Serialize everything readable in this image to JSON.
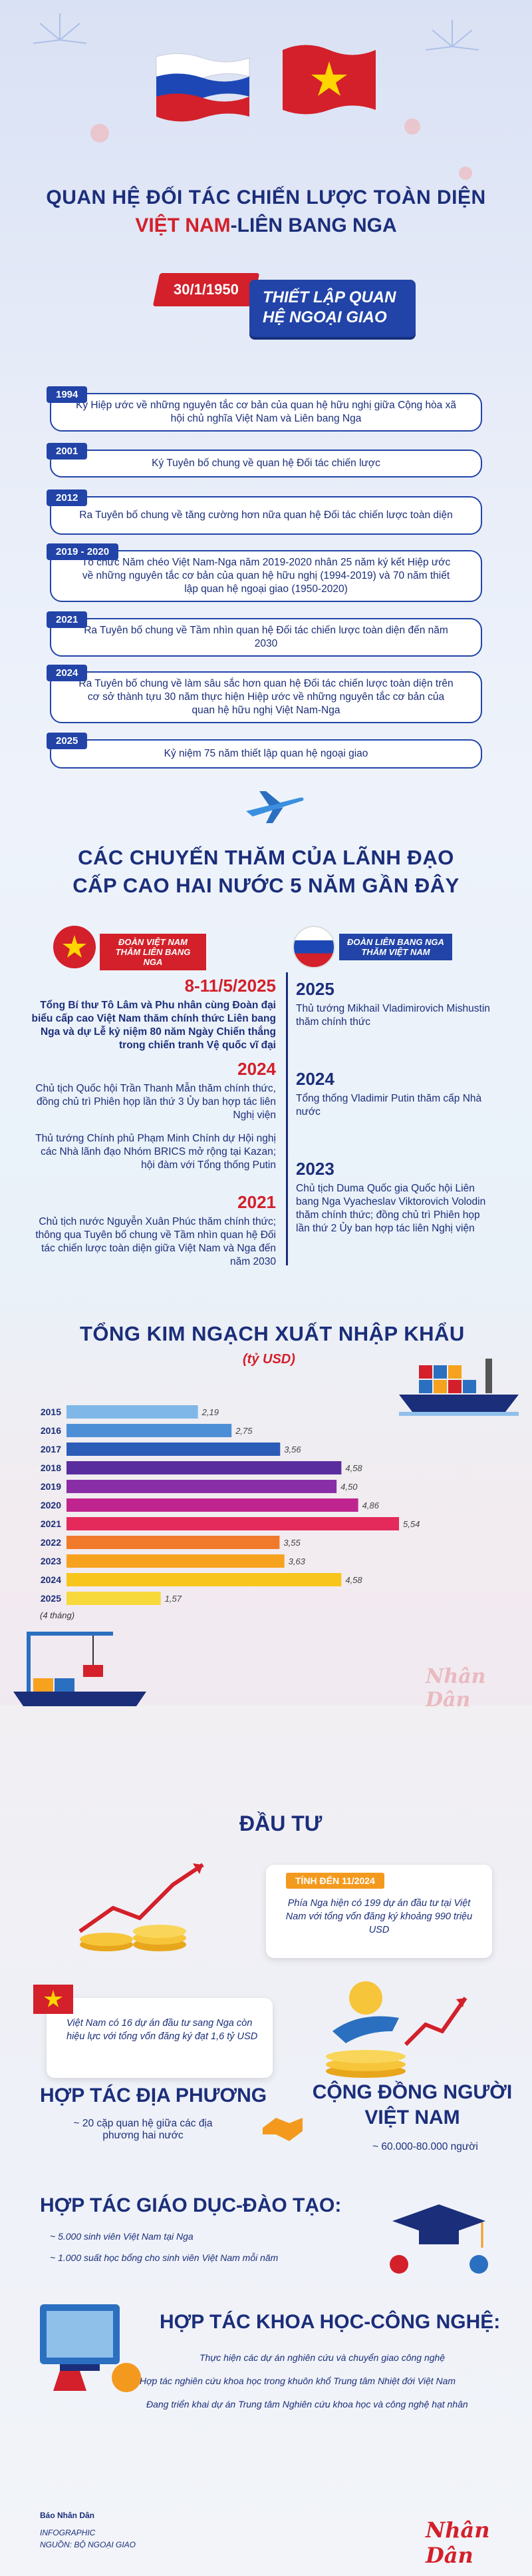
{
  "header": {
    "title_line1": "QUAN HỆ ĐỐI TÁC CHIẾN LƯỢC TOÀN DIỆN",
    "title_line2_red": "VIỆT NAM",
    "title_line2_blue": "-LIÊN BANG NGA",
    "date": "30/1/1950",
    "established": "THIẾT LẬP QUAN HỆ NGOẠI GIAO"
  },
  "timeline": [
    {
      "year": "1994",
      "text": "Ký Hiệp ước về những nguyên tắc cơ bản của quan hệ hữu nghị giữa Cộng hòa xã hội chủ nghĩa Việt Nam và Liên bang Nga"
    },
    {
      "year": "2001",
      "text": "Ký Tuyên bố chung về quan hệ Đối tác chiến lược"
    },
    {
      "year": "2012",
      "text": "Ra Tuyên bố chung về tăng cường hơn nữa quan hệ Đối tác chiến lược toàn diện"
    },
    {
      "year": "2019 - 2020",
      "text": "Tổ chức Năm chéo Việt Nam-Nga năm 2019-2020 nhân 25 năm ký kết Hiệp ước về những nguyên tắc cơ bản của quan hệ hữu nghị (1994-2019) và 70 năm thiết lập quan hệ ngoại giao (1950-2020)"
    },
    {
      "year": "2021",
      "text": "Ra Tuyên bố chung về Tầm nhìn quan hệ Đối tác chiến lược toàn diện đến năm 2030"
    },
    {
      "year": "2024",
      "text": "Ra Tuyên bố chung về làm sâu sắc hơn quan hệ Đối tác chiến lược toàn diện trên cơ sở thành tựu 30 năm thực hiện Hiệp ước về những nguyên tắc cơ bản của quan hệ hữu nghị Việt Nam-Nga"
    },
    {
      "year": "2025",
      "text": "Kỷ niệm 75 năm thiết lập quan hệ ngoại giao"
    }
  ],
  "visits": {
    "title_line1": "CÁC CHUYẾN THĂM CỦA LÃNH ĐẠO",
    "title_line2": "CẤP CAO HAI NƯỚC 5 NĂM GẦN ĐÂY",
    "vn_tag": "ĐOÀN VIỆT NAM THĂM LIÊN BANG NGA",
    "ru_tag": "ĐOÀN LIÊN BANG NGA THĂM VIỆT NAM",
    "vn": [
      {
        "year": "8-11/5/2025",
        "text": "Tổng Bí thư Tô Lâm và Phu nhân cùng Đoàn đại biểu cấp cao Việt Nam thăm chính thức Liên bang Nga và dự Lễ kỷ niệm 80 năm Ngày Chiến thắng trong chiến tranh Vệ quốc vĩ đại"
      },
      {
        "year": "2024",
        "text": "Chủ tịch Quốc hội Trần Thanh Mẫn thăm chính thức, đồng chủ trì Phiên họp lần thứ 3 Ủy ban hợp tác liên Nghị viện",
        "text2": "Thủ tướng Chính phủ Phạm Minh Chính dự Hội nghị các Nhà lãnh đạo Nhóm BRICS mở rộng tại Kazan; hội đàm với Tổng thống Putin"
      },
      {
        "year": "2021",
        "text": "Chủ tịch nước Nguyễn Xuân Phúc thăm chính thức; thông qua Tuyên bố chung về Tầm nhìn quan hệ Đối tác chiến lược toàn diện giữa Việt Nam và Nga đến năm 2030"
      }
    ],
    "ru": [
      {
        "year": "2025",
        "text": "Thủ tướng Mikhail Vladimirovich Mishustin thăm chính thức"
      },
      {
        "year": "2024",
        "text": "Tổng thống Vladimir Putin thăm cấp Nhà nước"
      },
      {
        "year": "2023",
        "text": "Chủ tịch Duma Quốc gia Quốc hội Liên bang Nga Vyacheslav Viktorovich Volodin thăm chính thức; đồng chủ trì Phiên họp lần thứ 2 Ủy ban hợp tác liên Nghị viện"
      }
    ]
  },
  "trade": {
    "title": "TỔNG KIM NGẠCH XUẤT NHẬP KHẨU",
    "unit": "(tỷ USD)",
    "note": "(4 tháng)",
    "watermark": "Nhân Dân"
  },
  "chart_data": {
    "type": "bar",
    "categories": [
      "2015",
      "2016",
      "2017",
      "2018",
      "2019",
      "2020",
      "2021",
      "2022",
      "2023",
      "2024",
      "2025"
    ],
    "values": [
      2.19,
      2.75,
      3.56,
      4.58,
      4.5,
      4.86,
      5.54,
      3.55,
      3.63,
      4.58,
      1.57
    ],
    "value_labels": [
      "2,19",
      "2,75",
      "3,56",
      "4,58",
      "4,50",
      "4,86",
      "5,54",
      "3,55",
      "3,63",
      "4,58",
      "1,57"
    ],
    "colors": [
      "#7fb8e8",
      "#4c8fd6",
      "#2b5cb8",
      "#5a2d9e",
      "#8a2ea8",
      "#c0248f",
      "#e32a5b",
      "#f07a2a",
      "#f6a21e",
      "#f8c51c",
      "#f7d93c"
    ],
    "title": "TỔNG KIM NGẠCH XUẤT NHẬP KHẨU",
    "ylabel": "(tỷ USD)"
  },
  "investment": {
    "title": "ĐẦU TƯ",
    "as_of": "TÍNH ĐẾN 11/2024",
    "ru_in_vn": "Phía Nga hiện có 199 dự án đầu tư tại Việt Nam với tổng vốn đăng ký khoảng 990 triệu USD",
    "vn_in_ru": "Việt Nam có 16 dự án đầu tư sang Nga còn hiệu lực với tổng vốn đăng ký đạt 1,6 tỷ USD"
  },
  "local": {
    "title": "HỢP TÁC ĐỊA PHƯƠNG",
    "text": "~ 20 cặp quan hệ giữa các địa phương hai nước"
  },
  "community": {
    "title_line1": "CỘNG ĐỒNG NGƯỜI",
    "title_line2": "VIỆT NAM",
    "text": "~ 60.000-80.000 người"
  },
  "education": {
    "title": "HỢP TÁC GIÁO DỤC-ĐÀO TẠO:",
    "items": [
      "~ 5.000 sinh viên Việt Nam tại Nga",
      "~ 1.000 suất học bổng cho sinh viên Việt Nam mỗi năm"
    ]
  },
  "science": {
    "title": "HỢP TÁC KHOA HỌC-CÔNG NGHỆ:",
    "items": [
      "Thực hiện các dự án nghiên cứu và chuyển giao công nghệ",
      "Hợp tác nghiên cứu khoa học trong khuôn khổ Trung tâm Nhiệt đới Việt Nam",
      "Đang triển khai dự án Trung tâm Nghiên cứu khoa học và công nghệ hạt nhân"
    ]
  },
  "footer": {
    "publisher": "Báo Nhân Dân",
    "label": "INFOGRAPHIC",
    "source": "NGUỒN: BỘ NGOẠI GIAO",
    "logo": "Nhân Dân"
  }
}
